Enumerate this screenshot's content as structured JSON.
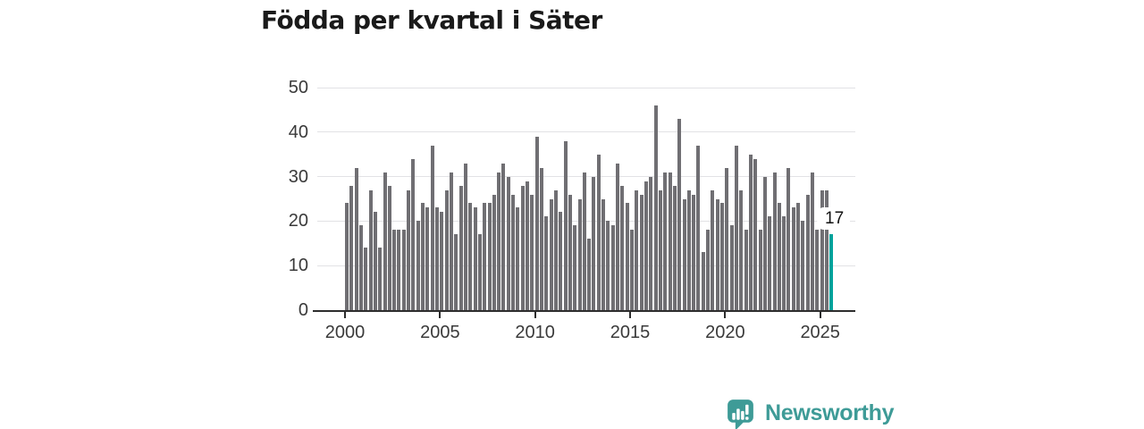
{
  "page": {
    "title": "Födda per kvartal i Säter"
  },
  "chart_data": {
    "type": "bar",
    "title": "Födda per kvartal i Säter",
    "x_period": "quarterly",
    "x_start": "2000-Q1",
    "x_end": "2025-Q3",
    "xticks": [
      "2000",
      "2005",
      "2010",
      "2015",
      "2020",
      "2025"
    ],
    "yticks": [
      0,
      10,
      20,
      30,
      40,
      50
    ],
    "ylim": [
      0,
      50
    ],
    "grid": true,
    "legend": "none",
    "values": [
      24,
      28,
      32,
      19,
      14,
      27,
      22,
      14,
      31,
      28,
      18,
      18,
      18,
      27,
      34,
      20,
      24,
      23,
      37,
      23,
      22,
      27,
      31,
      17,
      28,
      33,
      24,
      23,
      17,
      24,
      24,
      26,
      31,
      33,
      30,
      26,
      23,
      28,
      29,
      26,
      39,
      32,
      21,
      25,
      27,
      22,
      38,
      26,
      19,
      25,
      31,
      16,
      30,
      35,
      25,
      20,
      19,
      33,
      28,
      24,
      18,
      27,
      26,
      29,
      30,
      46,
      27,
      31,
      31,
      28,
      43,
      25,
      27,
      26,
      37,
      13,
      18,
      27,
      25,
      24,
      32,
      19,
      37,
      27,
      18,
      35,
      34,
      18,
      30,
      21,
      31,
      24,
      21,
      32,
      23,
      24,
      20,
      26,
      31,
      18,
      27,
      27,
      17
    ],
    "highlighted_last_value": 17,
    "annotation_label": "17",
    "bar_color": "#706f73",
    "highlight_color": "#00a39c"
  },
  "branding": {
    "label": "Newsworthy",
    "color": "#3e9b97",
    "icon": "newsworthy-speech-bubble-chart-icon"
  }
}
